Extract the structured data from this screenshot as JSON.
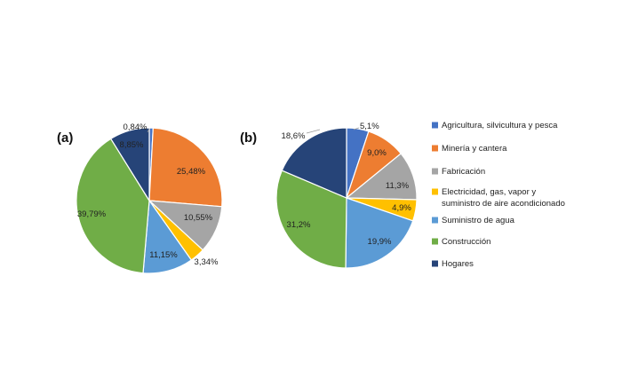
{
  "chart_data": [
    {
      "type": "pie",
      "panel_label": "(a)",
      "categories": [
        "Agricultura, silvicultura y pesca",
        "Minería y cantera",
        "Fabricación",
        "Electricidad, gas, vapor y suministro de aire acondicionado",
        "Suministro de agua",
        "Construcción",
        "Hogares"
      ],
      "values": [
        0.84,
        25.48,
        10.55,
        3.34,
        11.15,
        39.79,
        8.85
      ],
      "value_labels": [
        "0,84%",
        "25,48%",
        "10,55%",
        "3,34%",
        "11,15%",
        "39,79%",
        "8,85%"
      ]
    },
    {
      "type": "pie",
      "panel_label": "(b)",
      "categories": [
        "Agricultura, silvicultura y pesca",
        "Minería y cantera",
        "Fabricación",
        "Electricidad, gas, vapor y suministro de aire acondicionado",
        "Suministro de agua",
        "Construcción",
        "Hogares"
      ],
      "values": [
        5.1,
        9.0,
        11.3,
        4.9,
        19.9,
        31.2,
        18.6
      ],
      "value_labels": [
        "5,1%",
        "9,0%",
        "11,3%",
        "4,9%",
        "19,9%",
        "31,2%",
        "18,6%"
      ]
    }
  ],
  "legend": {
    "placement": "right",
    "items": [
      {
        "line1": "Agricultura, silvicultura y pesca",
        "line2": "",
        "color": "#4472C4"
      },
      {
        "line1": "Minería y cantera",
        "line2": "",
        "color": "#ED7D31"
      },
      {
        "line1": "Fabricación",
        "line2": "",
        "color": "#A5A5A5"
      },
      {
        "line1": "Electricidad, gas, vapor y",
        "line2": "suministro de aire acondicionado",
        "color": "#FFC000"
      },
      {
        "line1": "Suministro de agua",
        "line2": "",
        "color": "#5B9BD5"
      },
      {
        "line1": "Construcción",
        "line2": "",
        "color": "#70AD47"
      },
      {
        "line1": "Hogares",
        "line2": "",
        "color": "#264478"
      }
    ]
  }
}
